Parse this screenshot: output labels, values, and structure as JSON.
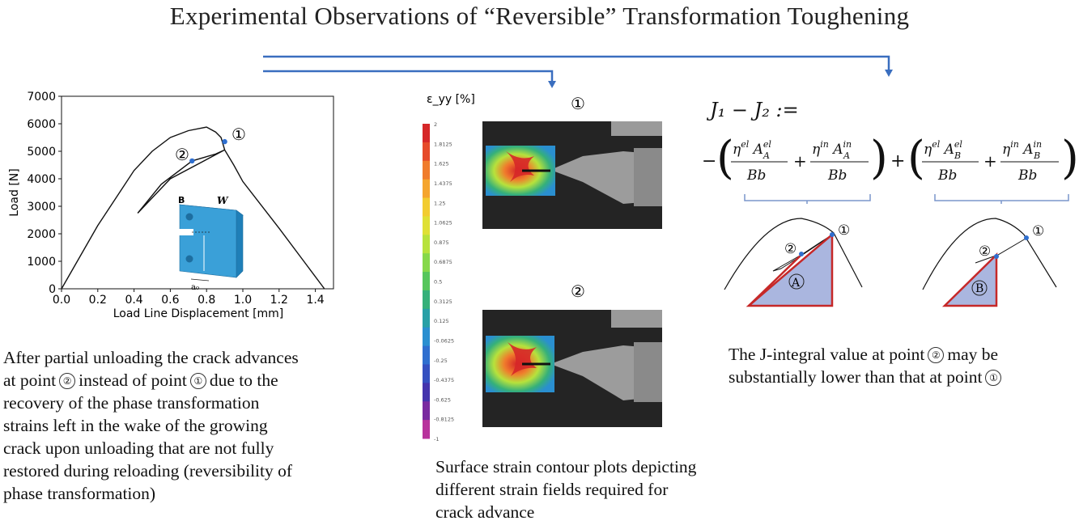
{
  "title": "Experimental Observations of “Reversible” Transformation Toughening",
  "plot": {
    "xlabel": "Load Line Displacement [mm]",
    "ylabel": "Load [N]",
    "x_ticks": [
      "0.0",
      "0.2",
      "0.4",
      "0.6",
      "0.8",
      "1.0",
      "1.2",
      "1.4"
    ],
    "y_ticks": [
      "0",
      "1000",
      "2000",
      "3000",
      "4000",
      "5000",
      "6000",
      "7000"
    ],
    "point1": "①",
    "point2": "②",
    "specimen_B": "B",
    "specimen_W": "W",
    "specimen_a0": "a₀"
  },
  "chart_data": {
    "type": "line",
    "xlabel": "Load Line Displacement [mm]",
    "ylabel": "Load [N]",
    "xlim": [
      0,
      1.5
    ],
    "ylim": [
      0,
      7000
    ],
    "series": [
      {
        "x": [
          0,
          0.2,
          0.4,
          0.5,
          0.6,
          0.7,
          0.8,
          0.85,
          0.88,
          0.9,
          0.95,
          1.0,
          1.2,
          1.45
        ],
        "y": [
          0,
          2300,
          4300,
          5000,
          5500,
          5750,
          5880,
          5700,
          5500,
          5050,
          4500,
          3900,
          2200,
          0
        ]
      },
      {
        "x": [
          0.9,
          0.6,
          0.42,
          0.55,
          0.72,
          0.85,
          0.9
        ],
        "y": [
          5050,
          4000,
          2750,
          3800,
          4650,
          4900,
          5050
        ]
      }
    ],
    "markers": [
      {
        "label": "①",
        "x": 0.9,
        "y": 5350
      },
      {
        "label": "②",
        "x": 0.72,
        "y": 4650
      }
    ]
  },
  "dic": {
    "label1": "①",
    "label2": "②",
    "colorbar_title": "ε_yy [%]",
    "colorbar_ticks": [
      "2",
      "1.8125",
      "1.625",
      "1.4375",
      "1.25",
      "1.0625",
      "0.875",
      "0.6875",
      "0.5",
      "0.3125",
      "0.125",
      "-0.0625",
      "-0.25",
      "-0.4375",
      "-0.625",
      "-0.8125",
      "-1"
    ],
    "colorbar_colors": [
      "#d62728",
      "#e64a2a",
      "#f07c2c",
      "#f5a52e",
      "#f2cc30",
      "#dfe035",
      "#b7e23c",
      "#86d84a",
      "#56c65c",
      "#35b07a",
      "#28a0a6",
      "#2a8fd0",
      "#2f6fcf",
      "#3550c0",
      "#4434ad",
      "#7a2aa0",
      "#b8339c"
    ]
  },
  "equation": {
    "lhs": "J₁ − J₂ :=",
    "minus": "−",
    "plus": "+",
    "triA": "A",
    "triB": "B",
    "pt1": "①",
    "pt2": "②"
  },
  "captions": {
    "left": [
      "After partial unloading the crack advances",
      "at point",
      "instead of point",
      "due to the",
      "recovery of the phase transformation",
      "strains left in the wake of the growing",
      "crack upon unloading that are not fully",
      "restored during reloading (reversibility of",
      "phase transformation)"
    ],
    "mid": "Surface strain contour plots depicting different strain fields required for crack advance",
    "right_a": "The J-integral value at point",
    "right_b": "may be",
    "right_c": "substantially lower than that at point"
  },
  "colors": {
    "arrow": "#3a6ebf",
    "curve": "#111111",
    "marker": "#2f6fd0",
    "triangle_fill": "#aab6df",
    "triangle_edge": "#c62828",
    "specimen": "#3aa0d8"
  }
}
